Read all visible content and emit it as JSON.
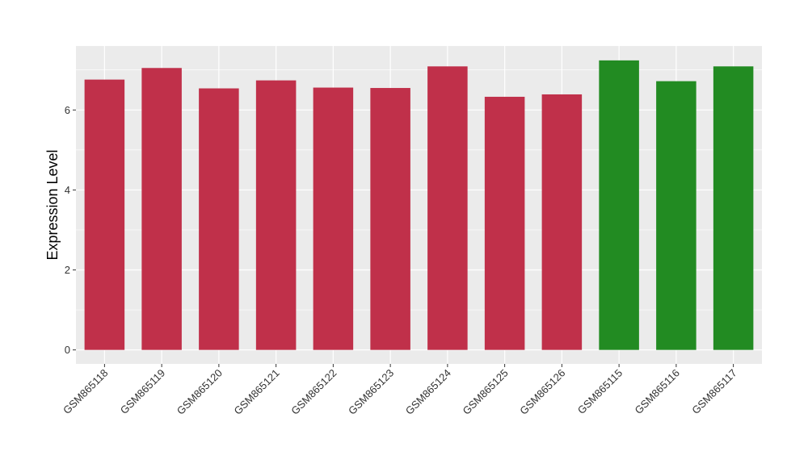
{
  "chart_data": {
    "type": "bar",
    "title": "",
    "xlabel": "",
    "ylabel": "Expression Level",
    "ylim": [
      -0.35,
      7.6
    ],
    "yticks": [
      0,
      2,
      4,
      6
    ],
    "grid": true,
    "legend": "none",
    "categories": [
      "GSM865118",
      "GSM865119",
      "GSM865120",
      "GSM865121",
      "GSM865122",
      "GSM865123",
      "GSM865124",
      "GSM865125",
      "GSM865126",
      "GSM865115",
      "GSM865116",
      "GSM865117"
    ],
    "values": [
      6.76,
      7.05,
      6.54,
      6.74,
      6.56,
      6.55,
      7.09,
      6.33,
      6.39,
      7.24,
      6.72,
      7.09
    ],
    "bar_colors": [
      "#C0304A",
      "#C0304A",
      "#C0304A",
      "#C0304A",
      "#C0304A",
      "#C0304A",
      "#C0304A",
      "#C0304A",
      "#C0304A",
      "#228B22",
      "#228B22",
      "#228B22"
    ],
    "panel_color": "#EBEBEB",
    "grid_color": "#FFFFFF"
  }
}
